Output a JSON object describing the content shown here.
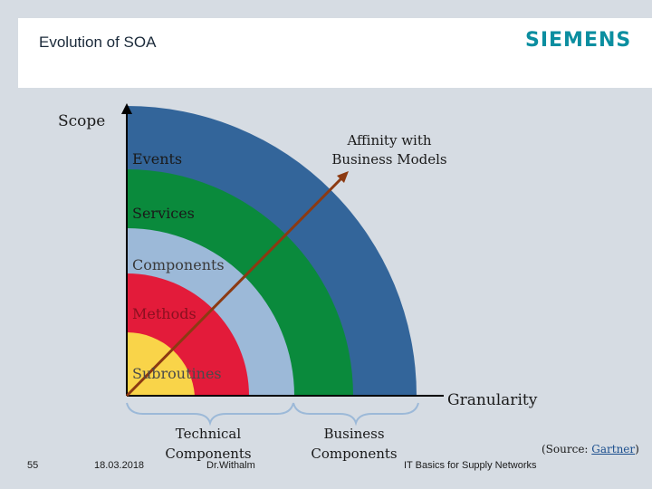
{
  "header": {
    "title": "Evolution of SOA",
    "logo": "SIEMENS"
  },
  "diagram": {
    "y_axis_label": "Scope",
    "x_axis_label": "Granularity",
    "arrow_label_line1": "Affinity with",
    "arrow_label_line2": "Business Models",
    "layers": [
      {
        "label": "Events",
        "color": "#33659a"
      },
      {
        "label": "Services",
        "color": "#0a8a3c"
      },
      {
        "label": "Components",
        "color": "#9cb9d8"
      },
      {
        "label": "Methods",
        "color": "#e31b3a"
      },
      {
        "label": "Subroutines",
        "color": "#f9d449"
      }
    ],
    "arrow_color": "#8c3a12",
    "brackets": [
      {
        "line1": "Technical",
        "line2": "Components"
      },
      {
        "line1": "Business",
        "line2": "Components"
      }
    ]
  },
  "footer": {
    "page_number": "55",
    "date": "18.03.2018",
    "author": "Dr.Withalm",
    "course": "IT Basics for Supply Networks",
    "source_prefix": "(Source: ",
    "source_link": "Gartner",
    "source_suffix": ")"
  }
}
